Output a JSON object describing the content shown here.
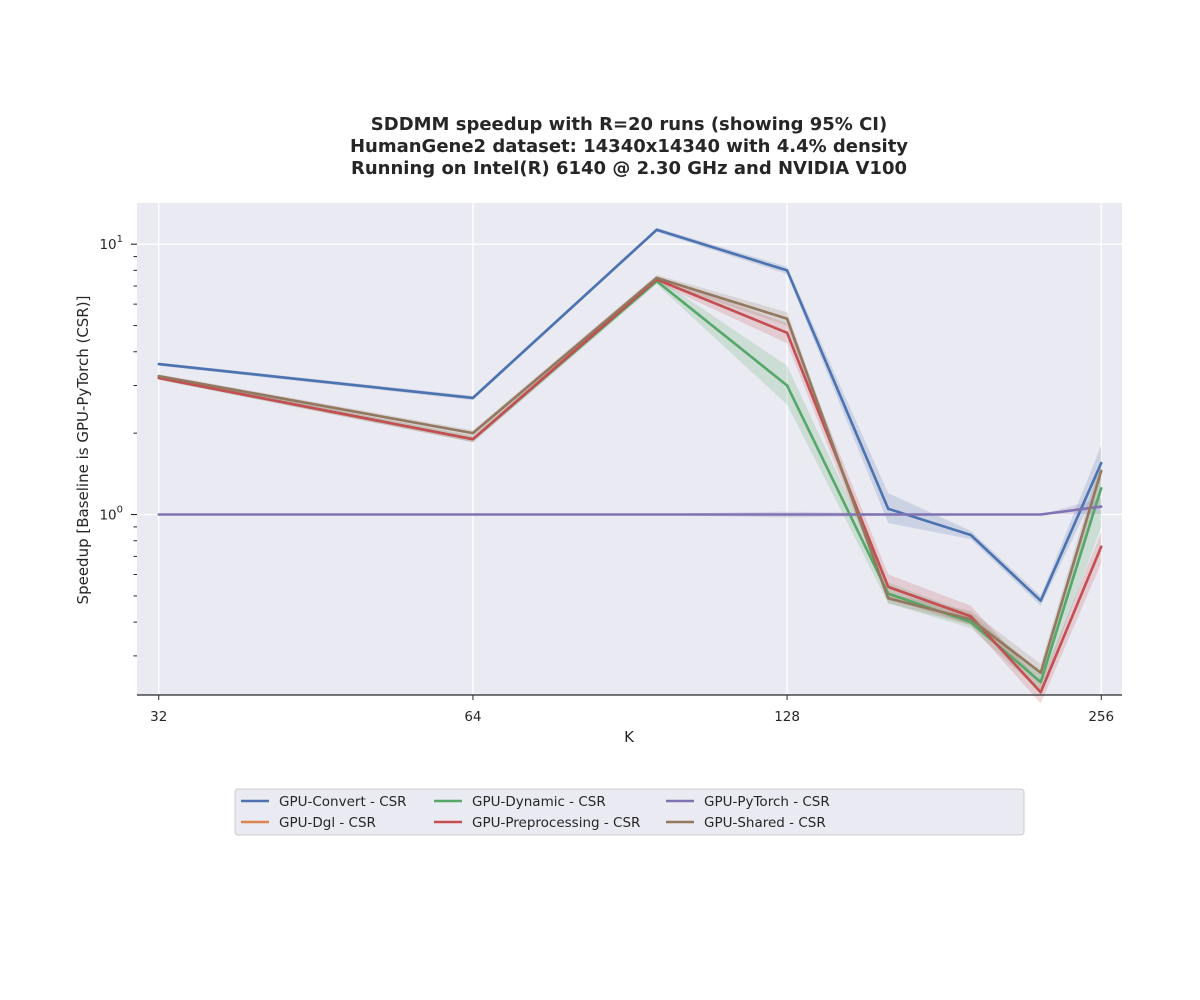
{
  "chart_data": {
    "type": "line",
    "title_lines": [
      "SDDMM speedup with R=20 runs (showing 95% CI)",
      "HumanGene2 dataset: 14340x14340 with 4.4% density",
      "Running on Intel(R) 6140 @ 2.30 GHz and NVIDIA V100"
    ],
    "xlabel": "K",
    "ylabel": "Speedup [Baseline is GPU-PyTorch (CSR)]",
    "x_scale": "log2",
    "y_scale": "log10",
    "xlim": [
      30.5,
      268
    ],
    "ylim": [
      0.215,
      14.2
    ],
    "x_ticks": [
      32,
      64,
      128,
      256
    ],
    "x_tick_labels": [
      "32",
      "64",
      "128",
      "256"
    ],
    "y_major_ticks": [
      1,
      10
    ],
    "y_tick_labels": [
      {
        "base": "10",
        "exp": "0"
      },
      {
        "base": "10",
        "exp": "1"
      }
    ],
    "y_minor_ticks": [
      0.3,
      0.4,
      0.5,
      0.6,
      0.7,
      0.8,
      0.9,
      2,
      3,
      4,
      5,
      6,
      7,
      8,
      9
    ],
    "grid": true,
    "x": [
      32,
      64,
      96,
      128,
      160,
      192,
      224,
      256
    ],
    "series": [
      {
        "name": "GPU-Convert - CSR",
        "color": "#4c72b0",
        "values": [
          3.6,
          2.7,
          11.3,
          8.0,
          1.05,
          0.84,
          0.48,
          1.55
        ],
        "ci_low": [
          3.55,
          2.65,
          11.1,
          7.75,
          0.93,
          0.81,
          0.46,
          1.35
        ],
        "ci_high": [
          3.65,
          2.75,
          11.5,
          8.25,
          1.2,
          0.87,
          0.5,
          1.8
        ]
      },
      {
        "name": "GPU-Dgl - CSR",
        "color": "#dd8452",
        "values": [
          null,
          null,
          null,
          null,
          null,
          null,
          null,
          null
        ]
      },
      {
        "name": "GPU-Dynamic - CSR",
        "color": "#55a868",
        "values": [
          3.2,
          1.9,
          7.3,
          3.0,
          0.51,
          0.4,
          0.24,
          1.25
        ],
        "ci_low": [
          3.15,
          1.85,
          7.1,
          2.55,
          0.47,
          0.38,
          0.22,
          0.9
        ],
        "ci_high": [
          3.25,
          1.95,
          7.5,
          3.55,
          0.56,
          0.43,
          0.26,
          1.5
        ]
      },
      {
        "name": "GPU-Preprocessing - CSR",
        "color": "#c44e52",
        "values": [
          3.2,
          1.9,
          7.4,
          4.7,
          0.54,
          0.42,
          0.22,
          0.76
        ],
        "ci_low": [
          3.15,
          1.85,
          7.2,
          4.3,
          0.49,
          0.39,
          0.2,
          0.66
        ],
        "ci_high": [
          3.25,
          1.95,
          7.6,
          5.1,
          0.6,
          0.46,
          0.24,
          0.86
        ]
      },
      {
        "name": "GPU-PyTorch - CSR",
        "color": "#8172b3",
        "values": [
          1.0,
          1.0,
          1.0,
          1.0,
          1.0,
          1.0,
          1.0,
          1.07
        ],
        "ci_low": [
          1.0,
          1.0,
          0.995,
          0.975,
          0.99,
          1.0,
          1.0,
          1.0
        ],
        "ci_high": [
          1.0,
          1.0,
          1.005,
          1.025,
          1.01,
          1.0,
          1.0,
          1.15
        ]
      },
      {
        "name": "GPU-Shared - CSR",
        "color": "#937860",
        "values": [
          3.25,
          2.0,
          7.5,
          5.3,
          0.49,
          0.41,
          0.26,
          1.45
        ],
        "ci_low": [
          3.2,
          1.95,
          7.3,
          5.0,
          0.47,
          0.39,
          0.24,
          1.3
        ],
        "ci_high": [
          3.3,
          2.05,
          7.7,
          5.6,
          0.51,
          0.44,
          0.28,
          1.6
        ]
      }
    ],
    "legend": {
      "placement": "bottom-center",
      "columns": 4,
      "entries": [
        {
          "label": "GPU-Convert - CSR",
          "color": "#4c72b0"
        },
        {
          "label": "GPU-Dgl - CSR",
          "color": "#dd8452"
        },
        {
          "label": "GPU-Dynamic - CSR",
          "color": "#55a868"
        },
        {
          "label": "GPU-Preprocessing - CSR",
          "color": "#c44e52"
        },
        {
          "label": "GPU-PyTorch - CSR",
          "color": "#8172b3"
        },
        {
          "label": "GPU-Shared - CSR",
          "color": "#937860"
        }
      ]
    },
    "colors": {
      "plot_bg": "#eaeaf2",
      "grid": "#ffffff",
      "axis": "#262626",
      "legend_bg": "#eaeaf2"
    }
  }
}
